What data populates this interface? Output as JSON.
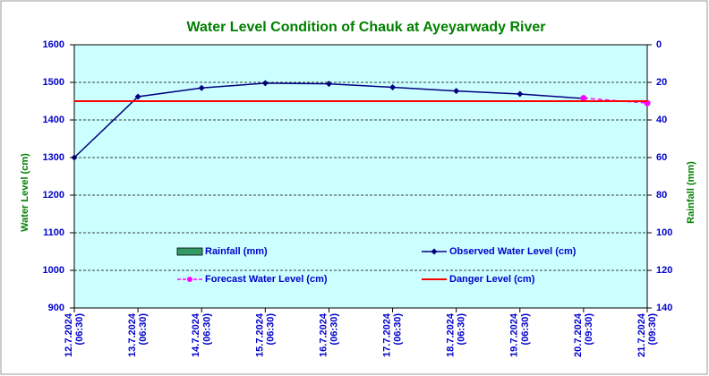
{
  "chart_data": {
    "type": "line",
    "title": "Water Level Condition of Chauk at Ayeyarwady River",
    "y_label": "Water Level (cm)",
    "y2_label": "Rainfall (mm)",
    "categories": [
      "12.7.2024 (06:30)",
      "13.7.2024 (06:30)",
      "14.7.2024 (06:30)",
      "15.7.2024 (06:30)",
      "16.7.2024 (06:30)",
      "17.7.2024 (06:30)",
      "18.7.2024 (06:30)",
      "19.7.2024 (06:30)",
      "20.7.2024 (09:30)",
      "21.7.2024 (09:30)"
    ],
    "series": [
      {
        "name": "Rainfall (mm)",
        "color": "#339966",
        "style": "bar",
        "axis": "y2",
        "values": [
          null,
          null,
          null,
          null,
          null,
          null,
          null,
          null,
          null,
          null
        ]
      },
      {
        "name": "Observed Water Level (cm)",
        "color": "#000080",
        "style": "line-diamond",
        "values": [
          1300,
          1462,
          1485,
          1498,
          1496,
          1487,
          1477,
          1469,
          1457,
          null
        ]
      },
      {
        "name": "Forecast Water Level (cm)",
        "color": "#ff00ff",
        "style": "dashed-circle",
        "values": [
          null,
          null,
          null,
          null,
          null,
          null,
          null,
          null,
          1458,
          1445
        ]
      },
      {
        "name": "Danger Level (cm)",
        "color": "#ff0000",
        "style": "line",
        "values": [
          1450,
          1450,
          1450,
          1450,
          1450,
          1450,
          1450,
          1450,
          1450,
          1450
        ]
      }
    ],
    "ylim": [
      900,
      1600
    ],
    "yticks": [
      900,
      1000,
      1100,
      1200,
      1300,
      1400,
      1500,
      1600
    ],
    "y2lim": [
      140,
      0
    ],
    "y2ticks": [
      0,
      20,
      40,
      60,
      80,
      100,
      120,
      140
    ],
    "grid": true
  }
}
